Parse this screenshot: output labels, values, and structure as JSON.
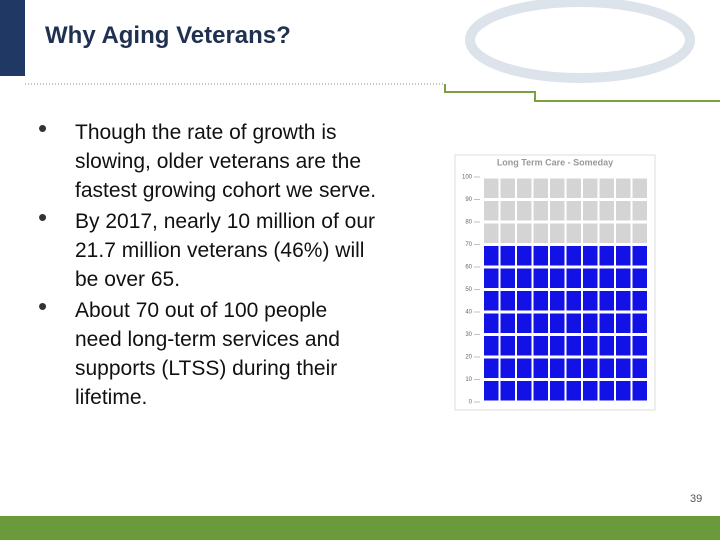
{
  "header": {
    "title": "Why Aging Veterans?"
  },
  "bullets": [
    "Though the rate of growth is slowing, older veterans  are the fastest growing cohort we serve.",
    "By 2017, nearly 10 million of our 21.7 million veterans (46%) will be over 65.",
    "About 70 out of 100 people need long-term services and supports (LTSS) during their lifetime."
  ],
  "chart": {
    "type": "waffle",
    "title": "Long Term Care - Someday",
    "value": 70,
    "color": "#1212e6",
    "ylim": [
      0,
      100
    ],
    "yticks": [
      0,
      10,
      20,
      30,
      40,
      50,
      60,
      70,
      80,
      90,
      100
    ],
    "columns": 10
  },
  "page_number": "39"
}
